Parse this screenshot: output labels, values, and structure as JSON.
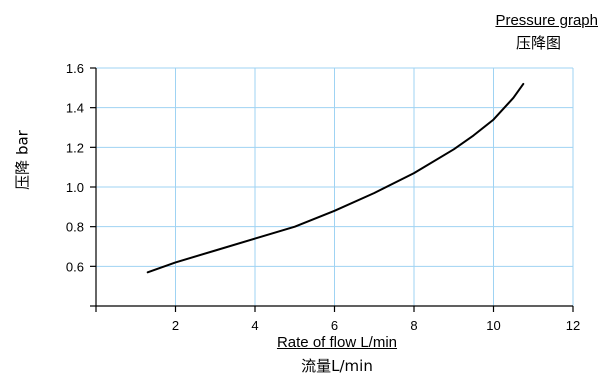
{
  "chart_data": {
    "type": "line",
    "title": "Pressure graph",
    "title_cn": "压降图",
    "xlabel": "Rate of flow L/min",
    "xlabel_cn": "流量L/min",
    "ylabel": "压降 bar",
    "xlim": [
      0,
      12
    ],
    "ylim": [
      0.4,
      1.6
    ],
    "x_ticks": [
      0,
      2,
      4,
      6,
      8,
      10,
      12
    ],
    "x_tick_labels": [
      "",
      "2",
      "4",
      "6",
      "8",
      "10",
      "12"
    ],
    "y_ticks": [
      0.4,
      0.6,
      0.8,
      1.0,
      1.2,
      1.4,
      1.6
    ],
    "y_tick_labels": [
      "",
      "0.6",
      "0.8",
      "1.0",
      "1.2",
      "1.4",
      "1.6"
    ],
    "grid": true,
    "series": [
      {
        "x": [
          1.3,
          2.0,
          3.0,
          4.0,
          5.0,
          6.0,
          7.0,
          8.0,
          9.0,
          9.5,
          10.0,
          10.5,
          10.75
        ],
        "y": [
          0.57,
          0.62,
          0.68,
          0.74,
          0.8,
          0.88,
          0.97,
          1.07,
          1.19,
          1.26,
          1.34,
          1.45,
          1.52
        ]
      }
    ],
    "line_color": "#000000",
    "grid_color": "#9fd3f3"
  }
}
